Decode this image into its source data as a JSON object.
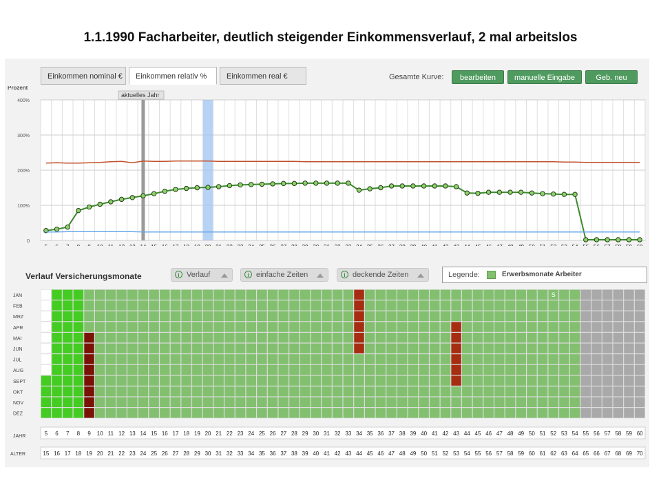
{
  "slide_title": "1.1.1990 Facharbeiter, deutlich steigender Einkommensverlauf, 2 mal arbeitslos",
  "tabs": [
    {
      "label": "Einkommen nominal €",
      "active": false
    },
    {
      "label": "Einkommen relativ %",
      "active": true
    },
    {
      "label": "Einkommen real €",
      "active": false
    }
  ],
  "toolbar": {
    "kurve_label": "Gesamte Kurve:",
    "edit_label": "bearbeiten",
    "manual_label": "manuelle Eingabe",
    "new_label": "Geb. neu"
  },
  "colors": {
    "accent_green": "#4f9a5f",
    "line_red": "#c0502a",
    "line_green": "#3c8a2e",
    "line_blue": "#6aa8e8",
    "cell_green": "#82c06f",
    "cell_bright": "#44cc22",
    "cell_red": "#a62d12",
    "cell_dark": "#7a1208",
    "cell_grey": "#a9a9a9"
  },
  "chart_data": {
    "type": "line",
    "ylabel": "Prozent",
    "y_ticks": [
      "400%",
      "300%",
      "200%",
      "100%",
      "0"
    ],
    "ylim": [
      0,
      400
    ],
    "current_year_label": "aktuelles Jahr",
    "current_year_x": 14,
    "highlight_x": 20,
    "x": [
      5,
      6,
      7,
      8,
      9,
      10,
      11,
      12,
      13,
      14,
      15,
      16,
      17,
      18,
      19,
      20,
      21,
      22,
      23,
      24,
      25,
      26,
      27,
      28,
      29,
      30,
      31,
      32,
      33,
      34,
      35,
      36,
      37,
      38,
      39,
      40,
      41,
      42,
      43,
      44,
      45,
      46,
      47,
      48,
      49,
      50,
      51,
      52,
      53,
      54,
      55,
      56,
      57,
      58,
      59,
      60
    ],
    "series": [
      {
        "color": "red",
        "values": [
          220,
          221,
          220,
          220,
          221,
          222,
          224,
          225,
          221,
          226,
          225,
          225,
          226,
          226,
          226,
          226,
          225,
          225,
          225,
          225,
          225,
          225,
          225,
          225,
          224,
          224,
          224,
          224,
          224,
          224,
          224,
          224,
          224,
          224,
          224,
          224,
          224,
          224,
          224,
          224,
          224,
          224,
          224,
          224,
          224,
          224,
          224,
          224,
          223,
          223,
          222,
          222,
          222,
          222,
          222,
          222
        ]
      },
      {
        "color": "green",
        "values": [
          28,
          32,
          38,
          85,
          95,
          103,
          110,
          117,
          122,
          127,
          133,
          140,
          145,
          148,
          150,
          151,
          153,
          156,
          158,
          159,
          160,
          161,
          162,
          162,
          163,
          163,
          163,
          163,
          163,
          143,
          147,
          150,
          155,
          155,
          155,
          155,
          155,
          155,
          153,
          135,
          134,
          137,
          137,
          137,
          137,
          135,
          133,
          132,
          131,
          131,
          2,
          2,
          2,
          2,
          2,
          2
        ]
      },
      {
        "color": "blue",
        "values": [
          24,
          24,
          25,
          25,
          25,
          25,
          25,
          25,
          25,
          24,
          24,
          24,
          24,
          24,
          24,
          24,
          24,
          24,
          24,
          24,
          24,
          24,
          24,
          24,
          24,
          24,
          24,
          24,
          24,
          24,
          24,
          24,
          24,
          24,
          24,
          24,
          24,
          24,
          24,
          24,
          24,
          24,
          24,
          24,
          24,
          24,
          24,
          24,
          24,
          24,
          24,
          24,
          24,
          24,
          24,
          24
        ]
      }
    ]
  },
  "insurance": {
    "title": "Verlauf Versicherungsmonate",
    "pills": [
      "Verlauf",
      "einfache Zeiten",
      "deckende Zeiten"
    ],
    "pill_icon": "i",
    "legend_label": "Legende:",
    "legend_text": "Erwerbsmonate Arbeiter",
    "months": [
      "JAN",
      "FEB",
      "MRZ",
      "APR",
      "MAI",
      "JUN",
      "JUL",
      "AUG",
      "SEPT",
      "OKT",
      "NOV",
      "DEZ"
    ],
    "row_label_year": "JAHR",
    "row_label_age": "ALTER",
    "years": [
      5,
      6,
      7,
      8,
      9,
      10,
      11,
      12,
      13,
      14,
      15,
      16,
      17,
      18,
      19,
      20,
      21,
      22,
      23,
      24,
      25,
      26,
      27,
      28,
      29,
      30,
      31,
      32,
      33,
      34,
      35,
      36,
      37,
      38,
      39,
      40,
      41,
      42,
      43,
      44,
      45,
      46,
      47,
      48,
      49,
      50,
      51,
      52,
      53,
      54,
      55,
      56,
      57,
      58,
      59,
      60
    ],
    "ages": [
      15,
      16,
      17,
      18,
      19,
      20,
      21,
      22,
      23,
      24,
      25,
      26,
      27,
      28,
      29,
      30,
      31,
      32,
      33,
      34,
      35,
      36,
      37,
      38,
      39,
      40,
      41,
      42,
      43,
      44,
      45,
      46,
      47,
      48,
      49,
      50,
      51,
      52,
      53,
      54,
      55,
      56,
      57,
      58,
      59,
      60,
      61,
      62,
      63,
      64,
      65,
      66,
      67,
      68,
      69,
      70
    ],
    "s_marker": "S"
  }
}
